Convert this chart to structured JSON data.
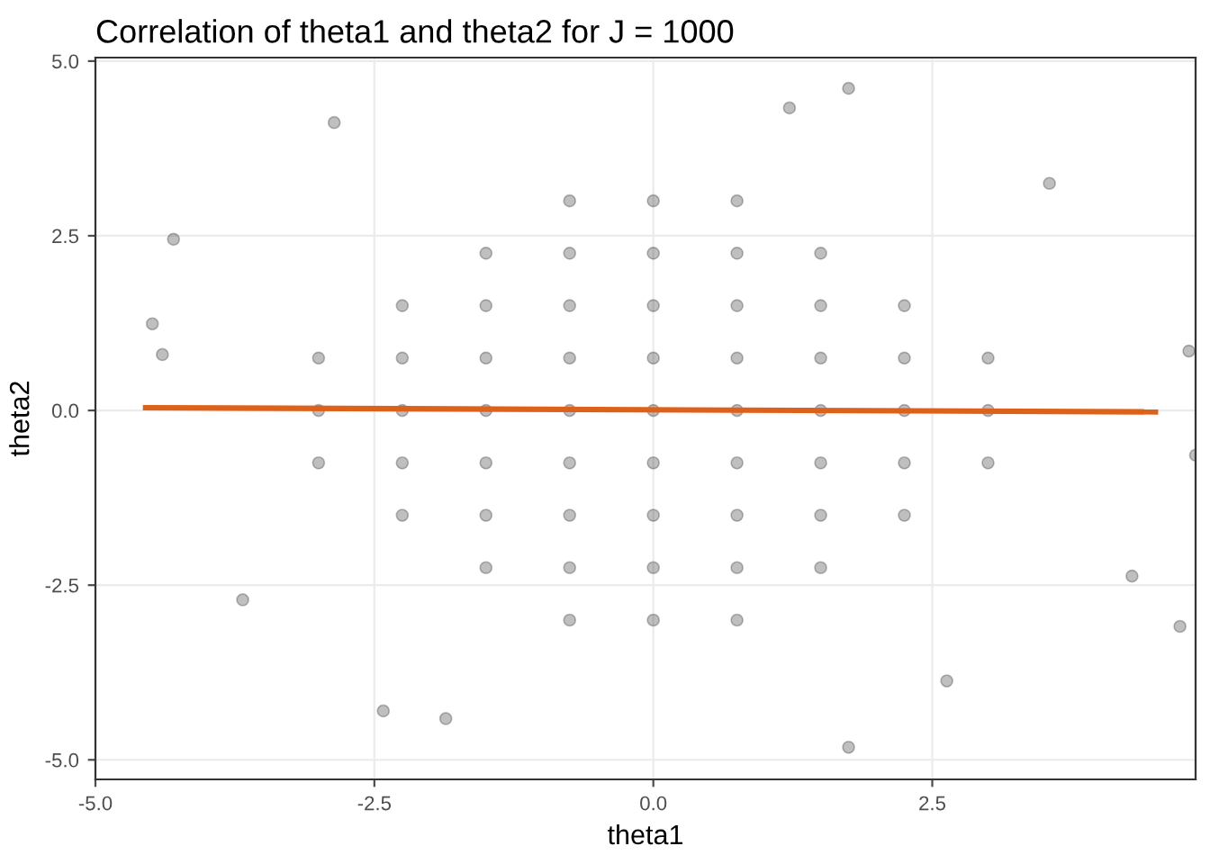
{
  "chart_data": {
    "type": "scatter",
    "title": "Correlation of theta1 and theta2 for J = 1000",
    "xlabel": "theta1",
    "ylabel": "theta2",
    "xlim": [
      -5.0,
      4.86
    ],
    "ylim": [
      -5.28,
      5.05
    ],
    "xticks": [
      {
        "value": -5.0,
        "label": "-5.0"
      },
      {
        "value": -2.5,
        "label": "-2.5"
      },
      {
        "value": 0.0,
        "label": "0.0"
      },
      {
        "value": 2.5,
        "label": "2.5"
      }
    ],
    "yticks": [
      {
        "value": -5.0,
        "label": "-5.0"
      },
      {
        "value": -2.5,
        "label": "-2.5"
      },
      {
        "value": 0.0,
        "label": "0.0"
      },
      {
        "value": 2.5,
        "label": "2.5"
      },
      {
        "value": 5.0,
        "label": "5.0"
      }
    ],
    "grid": true,
    "series": [
      {
        "color": "#000000",
        "marker": "circle",
        "x": [
          1.75,
          1.22,
          -2.86,
          -4.3,
          -4.49,
          -4.4,
          4.8,
          4.86,
          1.75,
          -2.42,
          -1.86,
          4.72,
          -3.68,
          4.29,
          2.63,
          3.55,
          -3,
          -3,
          -3,
          -2.25,
          -2.25,
          -2.25,
          -2.25,
          -2.25,
          -1.5,
          -1.5,
          -1.5,
          -1.5,
          -1.5,
          -1.5,
          -1.5,
          -0.75,
          -0.75,
          -0.75,
          -0.75,
          -0.75,
          -0.75,
          -0.75,
          -0.75,
          -0.75,
          0,
          0,
          0,
          0,
          0,
          0,
          0,
          0,
          0,
          0.75,
          0.75,
          0.75,
          0.75,
          0.75,
          0.75,
          0.75,
          0.75,
          0.75,
          1.5,
          1.5,
          1.5,
          1.5,
          1.5,
          1.5,
          1.5,
          2.25,
          2.25,
          2.25,
          2.25,
          2.25,
          3,
          3,
          3
        ],
        "values": [
          4.61,
          4.33,
          4.12,
          2.45,
          1.24,
          0.8,
          0.85,
          -0.64,
          -4.82,
          -4.3,
          -4.41,
          -3.09,
          -2.71,
          -2.37,
          -3.87,
          3.25,
          -0.75,
          0,
          0.75,
          -1.5,
          -0.75,
          0,
          0.75,
          1.5,
          -2.25,
          -1.5,
          -0.75,
          0,
          0.75,
          1.5,
          2.25,
          -3,
          -2.25,
          -1.5,
          -0.75,
          0,
          0.75,
          1.5,
          2.25,
          3,
          -3,
          -2.25,
          -1.5,
          -0.75,
          0,
          0.75,
          1.5,
          2.25,
          3,
          -3,
          -2.25,
          -1.5,
          -0.75,
          0,
          0.75,
          1.5,
          2.25,
          3,
          -2.25,
          -1.5,
          -0.75,
          0,
          0.75,
          1.5,
          2.25,
          -1.5,
          -0.75,
          0,
          0.75,
          1.5,
          -0.75,
          0,
          0.75
        ]
      },
      {
        "type": "line",
        "color": "#dd6119",
        "x": [
          -4.55,
          4.5
        ],
        "values": [
          0.04,
          -0.02
        ]
      }
    ]
  }
}
